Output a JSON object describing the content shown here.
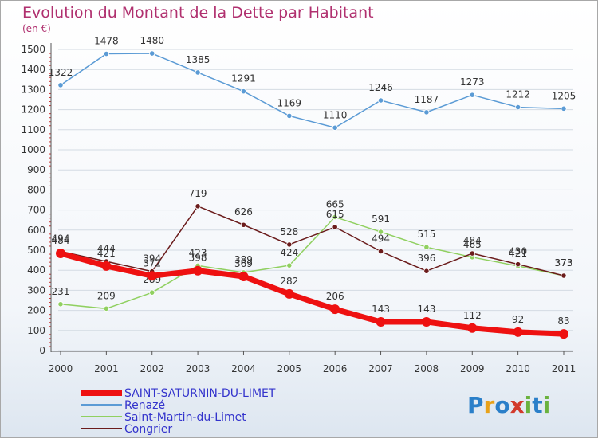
{
  "title": "Evolution du Montant de la Dette par Habitant",
  "unit": "(en €)",
  "logo": {
    "text": "Proxiti",
    "letters": [
      {
        "ch": "P",
        "color": "#2a7fc9"
      },
      {
        "ch": "r",
        "color": "#e8a21a"
      },
      {
        "ch": "o",
        "color": "#2a7fc9"
      },
      {
        "ch": "x",
        "color": "#d23a2c"
      },
      {
        "ch": "i",
        "color": "#6ab23e"
      },
      {
        "ch": "t",
        "color": "#2a7fc9"
      },
      {
        "ch": "i",
        "color": "#6ab23e"
      }
    ]
  },
  "chart_data": {
    "type": "line",
    "x": [
      "2000",
      "2001",
      "2002",
      "2003",
      "2004",
      "2005",
      "2006",
      "2007",
      "2008",
      "2009",
      "2010",
      "2011"
    ],
    "ylim": [
      0,
      1500
    ],
    "yticks": [
      0,
      100,
      200,
      300,
      400,
      500,
      600,
      700,
      800,
      900,
      1000,
      1100,
      1200,
      1300,
      1400,
      1500
    ],
    "grid": true,
    "series": [
      {
        "name": "SAINT-SATURNIN-DU-LIMET",
        "color": "#ee1111",
        "width": 7,
        "values": [
          484,
          421,
          372,
          398,
          369,
          282,
          206,
          143,
          143,
          112,
          92,
          83
        ]
      },
      {
        "name": "Renazé",
        "color": "#5b9bd5",
        "width": 1.5,
        "values": [
          1322,
          1478,
          1480,
          1385,
          1291,
          1169,
          1110,
          1246,
          1187,
          1273,
          1212,
          1205
        ]
      },
      {
        "name": "Saint-Martin-du-Limet",
        "color": "#90d060",
        "width": 1.5,
        "values": [
          231,
          209,
          289,
          423,
          389,
          424,
          665,
          591,
          515,
          465,
          421,
          373
        ]
      },
      {
        "name": "Congrier",
        "color": "#6b1c1c",
        "width": 1.5,
        "values": [
          494,
          444,
          394,
          719,
          626,
          528,
          615,
          494,
          396,
          484,
          430,
          373
        ]
      }
    ]
  }
}
